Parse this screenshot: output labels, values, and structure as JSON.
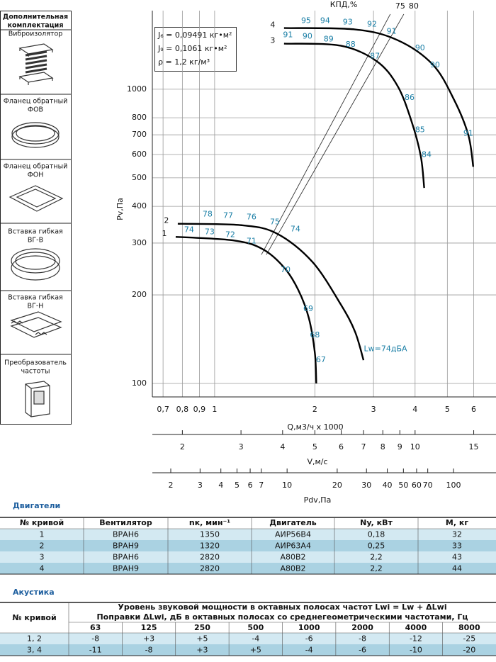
{
  "sidebar": {
    "title": [
      "Дополнительная",
      "комплектация"
    ],
    "items": [
      [
        "Виброизолятор"
      ],
      [
        "Фланец обратный",
        "ФОВ"
      ],
      [
        "Фланец обратный",
        "ФОН"
      ],
      [
        "Вставка гибкая",
        "ВГ-В"
      ],
      [
        "Вставка гибкая",
        "ВГ-Н"
      ],
      [
        "Преобразователь",
        "частоты"
      ]
    ]
  },
  "chart_data": {
    "type": "line",
    "xscale": "log",
    "yscale": "log",
    "grid": true,
    "x_label": "Q,м3/ч х 1000",
    "y_label": "Pv,Па",
    "top_label": "КПД,%",
    "xlim": [
      0.65,
      7
    ],
    "ylim": [
      90,
      1850
    ],
    "xticks": [
      {
        "value": 0.7,
        "label": "0,7"
      },
      {
        "value": 0.8,
        "label": "0,8"
      },
      {
        "value": 0.9,
        "label": "0,9"
      },
      1,
      2,
      3,
      4,
      5,
      6
    ],
    "yticks": [
      100,
      200,
      300,
      400,
      500,
      600,
      700,
      800,
      1000
    ],
    "v_axis": {
      "label": "V,м/с",
      "xlim": [
        1.625,
        17.5
      ],
      "xticks": [
        2,
        3,
        4,
        5,
        6,
        7,
        8,
        9,
        10,
        15
      ]
    },
    "pdv_axis": {
      "label": "Pdv,Па",
      "xlim": [
        1.55,
        180
      ],
      "xticks": [
        2,
        3,
        4,
        5,
        6,
        7,
        10,
        20,
        30,
        40,
        50,
        60,
        70,
        100
      ]
    },
    "annotation_color": "#1b7fa6",
    "series": [
      {
        "name": "1",
        "color": "#000000",
        "x": [
          0.764,
          1.147,
          1.395,
          1.616,
          1.783,
          1.918,
          2.0,
          2.02
        ],
        "values": [
          315,
          306,
          286,
          248,
          208,
          167,
          127,
          100
        ],
        "efficiency": [
          {
            "x": 0.838,
            "y": 332,
            "value": 74
          },
          {
            "x": 0.966,
            "y": 327,
            "value": 73
          },
          {
            "x": 1.114,
            "y": 320,
            "value": 72
          },
          {
            "x": 1.29,
            "y": 304,
            "value": 71
          },
          {
            "x": 1.633,
            "y": 243,
            "value": 70
          },
          {
            "x": 1.91,
            "y": 179,
            "value": 69
          },
          {
            "x": 2.0,
            "y": 146,
            "value": 68
          },
          {
            "x": 2.085,
            "y": 120,
            "value": 67
          }
        ]
      },
      {
        "name": "2",
        "color": "#000000",
        "x": [
          0.775,
          1.205,
          1.54,
          1.966,
          2.39,
          2.64,
          2.8
        ],
        "values": [
          349,
          345,
          323,
          259,
          186,
          150,
          120
        ],
        "efficiency": [
          {
            "x": 0.952,
            "y": 375,
            "value": 78
          },
          {
            "x": 1.098,
            "y": 371,
            "value": 77
          },
          {
            "x": 1.29,
            "y": 367,
            "value": 76
          },
          {
            "x": 1.517,
            "y": 353,
            "value": 75
          },
          {
            "x": 1.748,
            "y": 334,
            "value": 74
          }
        ]
      },
      {
        "name": "3",
        "color": "#000000",
        "x": [
          1.616,
          2.39,
          3.06,
          3.54,
          3.9,
          4.16,
          4.26
        ],
        "values": [
          1429,
          1406,
          1248,
          1028,
          780,
          593,
          462
        ],
        "efficiency": [
          {
            "x": 1.66,
            "y": 1528,
            "value": 91
          },
          {
            "x": 1.9,
            "y": 1512,
            "value": 90
          },
          {
            "x": 2.2,
            "y": 1478,
            "value": 89
          },
          {
            "x": 2.56,
            "y": 1416,
            "value": 88
          },
          {
            "x": 3.03,
            "y": 1295,
            "value": 87
          },
          {
            "x": 3.85,
            "y": 936,
            "value": 86
          },
          {
            "x": 4.14,
            "y": 727,
            "value": 85
          },
          {
            "x": 4.33,
            "y": 599,
            "value": 84
          }
        ]
      },
      {
        "name": "4",
        "color": "#000000",
        "x": [
          1.616,
          2.64,
          3.54,
          4.52,
          5.24,
          5.78,
          5.98
        ],
        "values": [
          1614,
          1597,
          1469,
          1213,
          920,
          699,
          545
        ],
        "efficiency": [
          {
            "x": 1.882,
            "y": 1706,
            "value": 95
          },
          {
            "x": 2.148,
            "y": 1706,
            "value": 94
          },
          {
            "x": 2.51,
            "y": 1687,
            "value": 93
          },
          {
            "x": 2.97,
            "y": 1660,
            "value": 92
          },
          {
            "x": 3.4,
            "y": 1571,
            "value": 91
          },
          {
            "x": 4.14,
            "y": 1377,
            "value": 90
          },
          {
            "x": 4.59,
            "y": 1206,
            "value": 90
          },
          {
            "x": 5.78,
            "y": 707,
            "value": 91
          }
        ]
      }
    ],
    "guide_lines": [
      {
        "label": 75,
        "x": [
          1.382,
          3.37
        ],
        "values": [
          274,
          1800
        ]
      },
      {
        "label": 80,
        "x": [
          1.43,
          3.7
        ],
        "values": [
          274,
          1800
        ]
      }
    ],
    "info": [
      "J₆ = 0,09491 кг•м²",
      "J₉ = 0,1061 кг•м²",
      "ρ = 1,2 кг/м³"
    ],
    "annotation": {
      "text": "Lw=74дБА",
      "x": 3.26,
      "y": 131
    }
  },
  "motors": {
    "title": "Двигатели",
    "columns": [
      "№ кривой",
      "Вентилятор",
      "nк, мин⁻¹",
      "Двигатель",
      "Ny, кВт",
      "M, кг"
    ],
    "rows": [
      [
        "1",
        "ВРАН6",
        "1350",
        "АИР56В4",
        "0,18",
        "32"
      ],
      [
        "2",
        "ВРАН9",
        "1320",
        "АИР63А4",
        "0,25",
        "33"
      ],
      [
        "3",
        "ВРАН6",
        "2820",
        "А80В2",
        "2,2",
        "43"
      ],
      [
        "4",
        "ВРАН9",
        "2820",
        "А80В2",
        "2,2",
        "44"
      ]
    ]
  },
  "acoustics": {
    "title": "Акустика",
    "first_column": "№ кривой",
    "header": "Уровень звуковой мощности в октавных полосах частот Lwi = Lw + ΔLwi",
    "subheader": "Поправки ΔLwi, дБ в октавных полосах со среднегеометрическими частотами, Гц",
    "frequencies": [
      "63",
      "125",
      "250",
      "500",
      "1000",
      "2000",
      "4000",
      "8000"
    ],
    "rows": [
      [
        "1, 2",
        "-8",
        "+3",
        "+5",
        "-4",
        "-6",
        "-8",
        "-12",
        "-25"
      ],
      [
        "3, 4",
        "-11",
        "-8",
        "+3",
        "+5",
        "-4",
        "-6",
        "-10",
        "-20"
      ]
    ]
  }
}
